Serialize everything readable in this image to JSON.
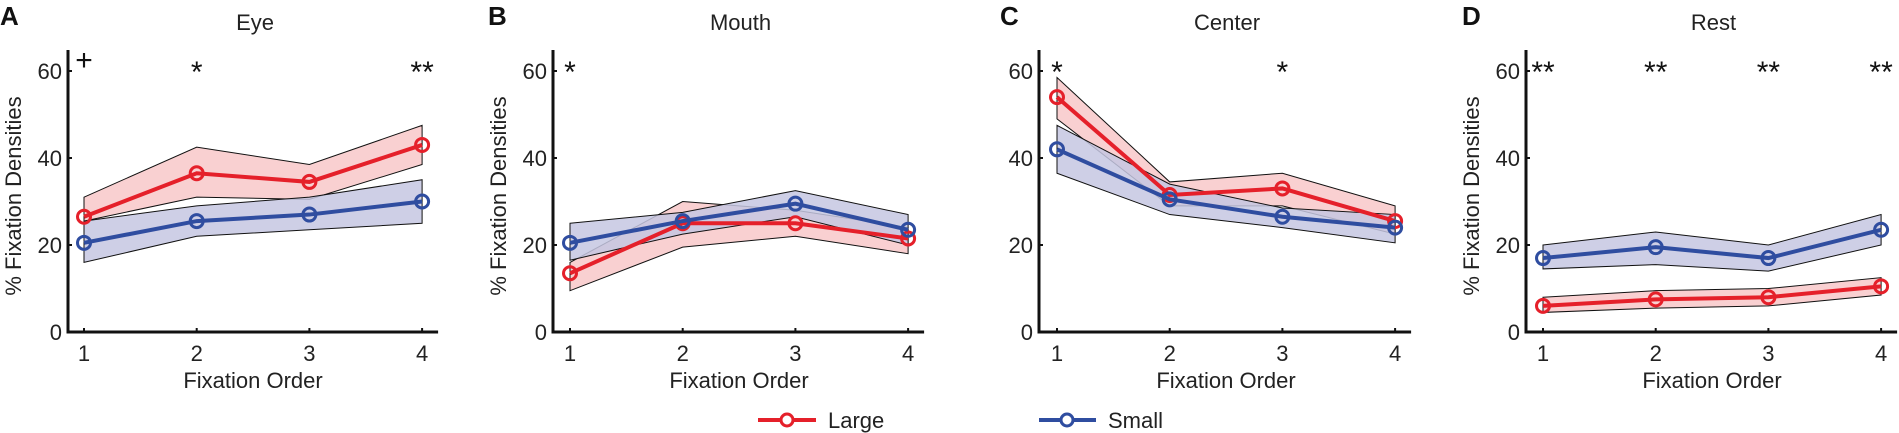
{
  "colors": {
    "Large": "#e5202a",
    "Small": "#2f4da0",
    "Large_fill": "#f8c8c9",
    "Small_fill": "#c6c7e2"
  },
  "legend": [
    {
      "label": "Large",
      "color": "#e5202a"
    },
    {
      "label": "Small",
      "color": "#2f4da0"
    }
  ],
  "chart_data": [
    {
      "type": "line",
      "panel": "A",
      "title": "Eye",
      "xlabel": "Fixation Order",
      "ylabel": "% Fixation Densities",
      "x": [
        1,
        2,
        3,
        4
      ],
      "ylim": [
        0,
        65
      ],
      "yticks": [
        0,
        20,
        40,
        60
      ],
      "grid": false,
      "series": [
        {
          "name": "Large",
          "values": [
            26.5,
            36.5,
            34.5,
            43
          ],
          "upper": [
            31,
            42.5,
            38.5,
            47.5
          ],
          "lower": [
            25.5,
            31,
            30.5,
            38.5
          ]
        },
        {
          "name": "Small",
          "values": [
            20.5,
            25.5,
            27,
            30
          ],
          "upper": [
            25.5,
            29,
            31,
            35
          ],
          "lower": [
            16,
            22,
            23.5,
            25
          ]
        }
      ],
      "annotations": [
        "+",
        "*",
        "",
        "**"
      ]
    },
    {
      "type": "line",
      "panel": "B",
      "title": "Mouth",
      "xlabel": "Fixation Order",
      "ylabel": "% Fixation Densities",
      "x": [
        1,
        2,
        3,
        4
      ],
      "ylim": [
        0,
        65
      ],
      "yticks": [
        0,
        20,
        40,
        60
      ],
      "grid": false,
      "series": [
        {
          "name": "Large",
          "values": [
            13.5,
            25,
            25,
            21.5
          ],
          "upper": [
            16,
            30,
            28,
            24
          ],
          "lower": [
            9.5,
            19.5,
            22,
            18
          ]
        },
        {
          "name": "Small",
          "values": [
            20.5,
            25.5,
            29.5,
            23.5
          ],
          "upper": [
            25,
            27.5,
            32.5,
            27
          ],
          "lower": [
            16.5,
            22.5,
            26.5,
            20
          ]
        }
      ],
      "annotations": [
        "*",
        "",
        "",
        ""
      ]
    },
    {
      "type": "line",
      "panel": "C",
      "title": "Center",
      "xlabel": "Fixation Order",
      "ylabel": "% Fixation Densities",
      "x": [
        1,
        2,
        3,
        4
      ],
      "ylim": [
        0,
        65
      ],
      "yticks": [
        0,
        20,
        40,
        60
      ],
      "grid": false,
      "series": [
        {
          "name": "Large",
          "values": [
            54,
            31.5,
            33,
            25.5
          ],
          "upper": [
            58.5,
            34.5,
            36.5,
            29
          ],
          "lower": [
            49,
            29,
            29,
            22.5
          ]
        },
        {
          "name": "Small",
          "values": [
            42,
            30.5,
            26.5,
            24
          ],
          "upper": [
            47.5,
            34,
            28.5,
            27
          ],
          "lower": [
            36.5,
            27,
            24,
            20.5
          ]
        }
      ],
      "annotations": [
        "*",
        "",
        "*",
        ""
      ]
    },
    {
      "type": "line",
      "panel": "D",
      "title": "Rest",
      "xlabel": "Fixation Order",
      "ylabel": "% Fixation Densities",
      "x": [
        1,
        2,
        3,
        4
      ],
      "ylim": [
        0,
        65
      ],
      "yticks": [
        0,
        20,
        40,
        60
      ],
      "grid": false,
      "series": [
        {
          "name": "Large",
          "values": [
            6,
            7.5,
            8,
            10.5
          ],
          "upper": [
            8,
            9.5,
            10,
            12.5
          ],
          "lower": [
            4.5,
            5.5,
            6,
            8.5
          ]
        },
        {
          "name": "Small",
          "values": [
            17,
            19.5,
            17,
            23.5
          ],
          "upper": [
            20,
            23,
            20,
            27
          ],
          "lower": [
            14.5,
            15.5,
            14,
            20
          ]
        }
      ],
      "annotations": [
        "**",
        "**",
        "**",
        "**"
      ]
    }
  ]
}
